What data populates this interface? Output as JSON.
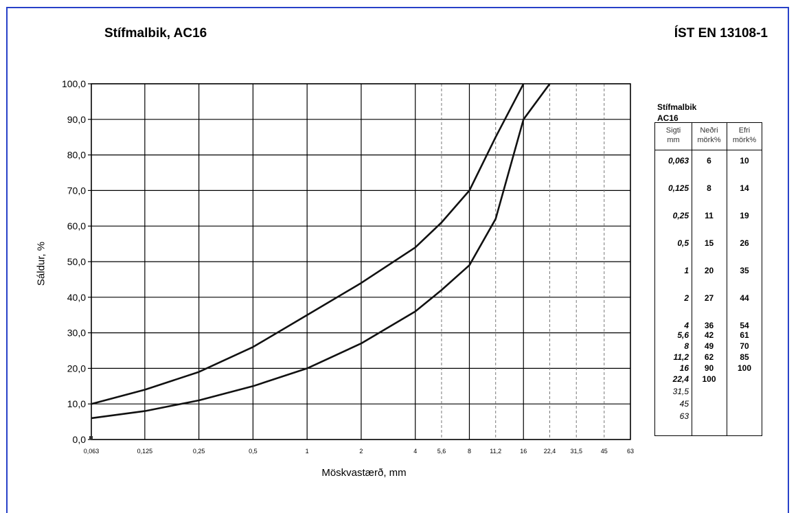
{
  "title_left": "Stífmalbik, AC16",
  "title_right": "ÍST EN 13108-1",
  "table": {
    "title_line1": "Stífmalbik",
    "title_line2": "AC16",
    "headers": {
      "sieve_line1": "Sigti",
      "sieve_line2": "mm",
      "lower_line1": "Neðri",
      "lower_line2": "mörk%",
      "upper_line1": "Efri",
      "upper_line2": "mörk%"
    },
    "sieves": [
      "0,063",
      "0,125",
      "0,25",
      "0,5",
      "1",
      "2",
      "4",
      "5,6",
      "8",
      "11,2",
      "16",
      "22,4",
      "31,5",
      "45",
      "63"
    ],
    "lower": [
      "6",
      "8",
      "11",
      "15",
      "20",
      "27",
      "36",
      "42",
      "49",
      "62",
      "90",
      "100",
      "",
      "",
      ""
    ],
    "upper": [
      "10",
      "14",
      "19",
      "26",
      "35",
      "44",
      "54",
      "61",
      "70",
      "85",
      "100",
      "",
      "",
      "",
      ""
    ]
  },
  "chart_data": {
    "type": "line",
    "title": "Stífmalbik, AC16",
    "xlabel": "Möskvastærð, mm",
    "ylabel": "Sáldur, %",
    "ylim": [
      0,
      100
    ],
    "x_scale": "log",
    "x_ticks": [
      "0,063",
      "0,125",
      "0,25",
      "0,5",
      "1",
      "2",
      "4",
      "5,6",
      "8",
      "11,2",
      "16",
      "22,4",
      "31,5",
      "45",
      "63"
    ],
    "x_tick_values": [
      0.063,
      0.125,
      0.25,
      0.5,
      1,
      2,
      4,
      5.6,
      8,
      11.2,
      16,
      22.4,
      31.5,
      45,
      63
    ],
    "x_tick_dashed": [
      false,
      false,
      false,
      false,
      false,
      false,
      false,
      true,
      false,
      true,
      false,
      true,
      true,
      true,
      false
    ],
    "y_ticks": [
      "0,0",
      "10,0",
      "20,0",
      "30,0",
      "40,0",
      "50,0",
      "60,0",
      "70,0",
      "80,0",
      "90,0",
      "100,0"
    ],
    "grid": true,
    "series": [
      {
        "x": [
          0.063,
          0.125,
          0.25,
          0.5,
          1,
          2,
          4,
          5.6,
          8,
          11.2,
          16,
          22.4
        ],
        "y": [
          6,
          8,
          11,
          15,
          20,
          27,
          36,
          42,
          49,
          62,
          90,
          100
        ]
      },
      {
        "x": [
          0.063,
          0.125,
          0.25,
          0.5,
          1,
          2,
          4,
          5.6,
          8,
          11.2,
          16
        ],
        "y": [
          10,
          14,
          19,
          26,
          35,
          44,
          54,
          61,
          70,
          85,
          100
        ]
      }
    ],
    "line_color": "#111111"
  }
}
